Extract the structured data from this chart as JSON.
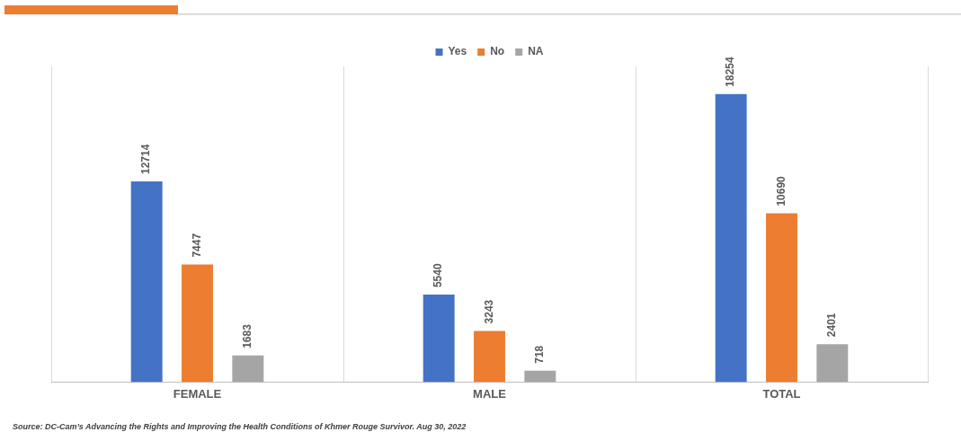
{
  "chart_data": {
    "type": "bar",
    "categories": [
      "FEMALE",
      "MALE",
      "TOTAL"
    ],
    "series": [
      {
        "name": "Yes",
        "color": "#4472c4",
        "values": [
          12714,
          5540,
          18254
        ]
      },
      {
        "name": "No",
        "color": "#ed7d31",
        "values": [
          7447,
          3243,
          10690
        ]
      },
      {
        "name": "NA",
        "color": "#a5a5a5",
        "values": [
          1683,
          718,
          2401
        ]
      }
    ],
    "data_labels": true,
    "legend": "top",
    "grid": "x",
    "annotations": [
      "Source: DC-Cam’s Advancing the Rights and Improving the Health Conditions of Khmer Rouge Survivor. Aug 30, 2022"
    ]
  }
}
